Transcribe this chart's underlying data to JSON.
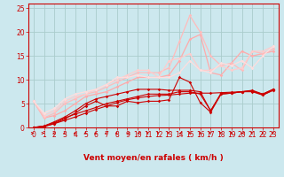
{
  "bg_color": "#cce8ee",
  "grid_color": "#aacccc",
  "xlabel": "Vent moyen/en rafales ( km/h )",
  "xlabel_color": "#cc0000",
  "xlabel_fontsize": 6.5,
  "tick_color": "#cc0000",
  "tick_fontsize": 5.5,
  "xlim": [
    -0.5,
    23.5
  ],
  "ylim": [
    0,
    26
  ],
  "yticks": [
    0,
    5,
    10,
    15,
    20,
    25
  ],
  "xticks": [
    0,
    1,
    2,
    3,
    4,
    5,
    6,
    7,
    8,
    9,
    10,
    11,
    12,
    13,
    14,
    15,
    16,
    17,
    18,
    19,
    20,
    21,
    22,
    23
  ],
  "lines": [
    {
      "x": [
        0,
        1,
        2,
        3,
        4,
        5,
        6,
        7,
        8,
        9,
        10,
        11,
        12,
        13,
        14,
        15,
        16,
        17,
        18,
        19,
        20,
        21,
        22,
        23
      ],
      "y": [
        0.0,
        0.2,
        0.8,
        1.5,
        2.2,
        3.0,
        3.8,
        4.5,
        5.2,
        5.8,
        6.2,
        6.5,
        6.7,
        6.8,
        7.0,
        7.2,
        7.2,
        7.2,
        7.3,
        7.4,
        7.5,
        7.6,
        7.0,
        8.0
      ],
      "color": "#cc0000",
      "lw": 0.8,
      "marker": "D",
      "ms": 1.8,
      "alpha": 1.0
    },
    {
      "x": [
        0,
        1,
        2,
        3,
        4,
        5,
        6,
        7,
        8,
        9,
        10,
        11,
        12,
        13,
        14,
        15,
        16,
        17,
        18,
        19,
        20,
        21,
        22,
        23
      ],
      "y": [
        0.0,
        0.3,
        1.0,
        2.0,
        2.8,
        3.5,
        4.2,
        5.0,
        5.5,
        6.0,
        6.5,
        7.0,
        7.0,
        7.0,
        7.5,
        7.5,
        7.0,
        3.5,
        7.0,
        7.2,
        7.5,
        7.5,
        6.8,
        7.8
      ],
      "color": "#cc0000",
      "lw": 0.8,
      "marker": "D",
      "ms": 1.8,
      "alpha": 1.0
    },
    {
      "x": [
        0,
        1,
        2,
        3,
        4,
        5,
        6,
        7,
        8,
        9,
        10,
        11,
        12,
        13,
        14,
        15,
        16,
        17,
        18,
        19,
        20,
        21,
        22,
        23
      ],
      "y": [
        0.0,
        0.2,
        0.8,
        1.8,
        3.0,
        4.5,
        5.5,
        4.5,
        4.5,
        5.5,
        5.2,
        5.5,
        5.5,
        5.8,
        10.5,
        9.5,
        5.2,
        3.2,
        7.0,
        7.2,
        7.5,
        7.7,
        6.8,
        7.8
      ],
      "color": "#cc0000",
      "lw": 0.8,
      "marker": "D",
      "ms": 1.8,
      "alpha": 1.0
    },
    {
      "x": [
        0,
        1,
        2,
        3,
        4,
        5,
        6,
        7,
        8,
        9,
        10,
        11,
        12,
        13,
        14,
        15,
        16,
        17,
        18,
        19,
        20,
        21,
        22,
        23
      ],
      "y": [
        0.0,
        0.3,
        1.2,
        2.2,
        3.5,
        5.0,
        6.0,
        6.5,
        7.0,
        7.5,
        8.0,
        8.0,
        8.0,
        7.8,
        7.8,
        7.8,
        7.5,
        3.5,
        7.2,
        7.2,
        7.5,
        7.8,
        7.0,
        8.0
      ],
      "color": "#cc0000",
      "lw": 0.8,
      "marker": "D",
      "ms": 1.8,
      "alpha": 1.0
    },
    {
      "x": [
        0,
        1,
        2,
        3,
        4,
        5,
        6,
        7,
        8,
        9,
        10,
        11,
        12,
        13,
        14,
        15,
        16,
        17,
        18,
        19,
        20,
        21,
        22,
        23
      ],
      "y": [
        5.5,
        2.0,
        2.5,
        3.5,
        5.0,
        6.5,
        7.0,
        7.5,
        8.5,
        9.5,
        10.5,
        10.5,
        10.5,
        11.0,
        14.0,
        18.5,
        19.5,
        11.5,
        11.0,
        13.5,
        16.0,
        15.0,
        15.5,
        16.0
      ],
      "color": "#ffaaaa",
      "lw": 0.9,
      "marker": "D",
      "ms": 1.8,
      "alpha": 1.0
    },
    {
      "x": [
        0,
        1,
        2,
        3,
        4,
        5,
        6,
        7,
        8,
        9,
        10,
        11,
        12,
        13,
        14,
        15,
        16,
        17,
        18,
        19,
        20,
        21,
        22,
        23
      ],
      "y": [
        5.5,
        2.0,
        3.0,
        5.0,
        6.0,
        7.0,
        7.5,
        8.5,
        9.5,
        10.5,
        11.5,
        11.5,
        11.5,
        12.5,
        18.0,
        23.5,
        20.0,
        15.0,
        13.0,
        13.5,
        12.0,
        16.0,
        15.5,
        16.5
      ],
      "color": "#ffbbbb",
      "lw": 0.9,
      "marker": "D",
      "ms": 1.8,
      "alpha": 1.0
    },
    {
      "x": [
        0,
        1,
        2,
        3,
        4,
        5,
        6,
        7,
        8,
        9,
        10,
        11,
        12,
        13,
        14,
        15,
        16,
        17,
        18,
        19,
        20,
        21,
        22,
        23
      ],
      "y": [
        5.5,
        2.5,
        3.5,
        5.5,
        6.5,
        7.0,
        8.0,
        9.0,
        10.0,
        11.0,
        12.0,
        12.0,
        10.5,
        14.0,
        14.5,
        15.5,
        12.0,
        12.0,
        13.0,
        12.0,
        12.5,
        16.0,
        16.0,
        17.0
      ],
      "color": "#ffcccc",
      "lw": 0.9,
      "marker": "D",
      "ms": 1.8,
      "alpha": 1.0
    },
    {
      "x": [
        0,
        1,
        2,
        3,
        4,
        5,
        6,
        7,
        8,
        9,
        10,
        11,
        12,
        13,
        14,
        15,
        16,
        17,
        18,
        19,
        20,
        21,
        22,
        23
      ],
      "y": [
        5.5,
        3.0,
        4.0,
        6.0,
        7.0,
        7.5,
        8.0,
        9.0,
        10.5,
        10.5,
        11.0,
        10.5,
        10.5,
        10.5,
        11.5,
        14.0,
        12.0,
        11.5,
        13.5,
        13.0,
        14.0,
        12.5,
        15.0,
        17.0
      ],
      "color": "#ffdddd",
      "lw": 0.9,
      "marker": "D",
      "ms": 1.8,
      "alpha": 1.0
    }
  ],
  "arrow_dirs": [
    0,
    0,
    225,
    225,
    225,
    225,
    225,
    225,
    225,
    180,
    180,
    135,
    135,
    135,
    180,
    90,
    90,
    135,
    135,
    90,
    180,
    135,
    90,
    135
  ],
  "arrow_color": "#cc0000"
}
